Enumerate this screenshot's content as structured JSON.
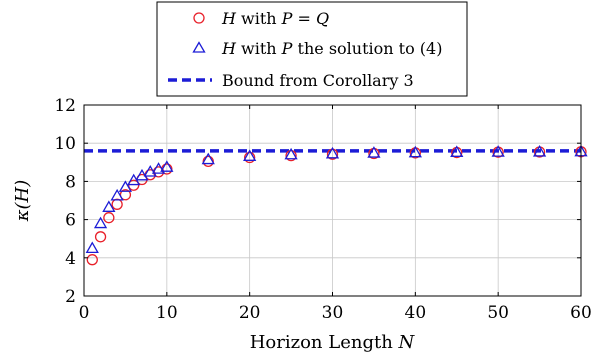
{
  "chart_data": {
    "type": "scatter",
    "xlabel": {
      "text": "Horizon Length ",
      "var": "N"
    },
    "ylabel": {
      "text": "κ(H)"
    },
    "xlim": [
      0,
      60
    ],
    "ylim": [
      2,
      12
    ],
    "xticks": [
      0,
      10,
      20,
      30,
      40,
      50,
      60
    ],
    "yticks": [
      2,
      4,
      6,
      8,
      10,
      12
    ],
    "grid": true,
    "legend_position": "top-center",
    "series": [
      {
        "name": "H with P = Q",
        "legend": {
          "a": "H",
          "b": " with ",
          "c": "P = Q",
          "d": ""
        },
        "marker": "circle",
        "color": "#e8202a",
        "x": [
          1,
          2,
          3,
          4,
          5,
          6,
          7,
          8,
          9,
          10,
          15,
          20,
          25,
          30,
          35,
          40,
          45,
          50,
          55,
          60
        ],
        "y": [
          3.9,
          5.1,
          6.1,
          6.8,
          7.3,
          7.8,
          8.1,
          8.35,
          8.5,
          8.65,
          9.05,
          9.25,
          9.35,
          9.42,
          9.46,
          9.49,
          9.51,
          9.53,
          9.54,
          9.55
        ]
      },
      {
        "name": "H with P the solution to (4)",
        "legend": {
          "a": "H",
          "b": " with ",
          "c": "P",
          "d": " the solution to (4)"
        },
        "marker": "triangle",
        "color": "#1c1cd6",
        "x": [
          1,
          2,
          3,
          4,
          5,
          6,
          7,
          8,
          9,
          10,
          15,
          20,
          25,
          30,
          35,
          40,
          45,
          50,
          55,
          60
        ],
        "y": [
          4.5,
          5.8,
          6.65,
          7.25,
          7.7,
          8.05,
          8.3,
          8.5,
          8.65,
          8.75,
          9.15,
          9.32,
          9.4,
          9.45,
          9.49,
          9.51,
          9.53,
          9.54,
          9.55,
          9.56
        ]
      }
    ],
    "bound": {
      "name": "Bound from Corollary 3",
      "value": 9.6,
      "color": "#1c1cd6",
      "style": "dashed"
    }
  }
}
